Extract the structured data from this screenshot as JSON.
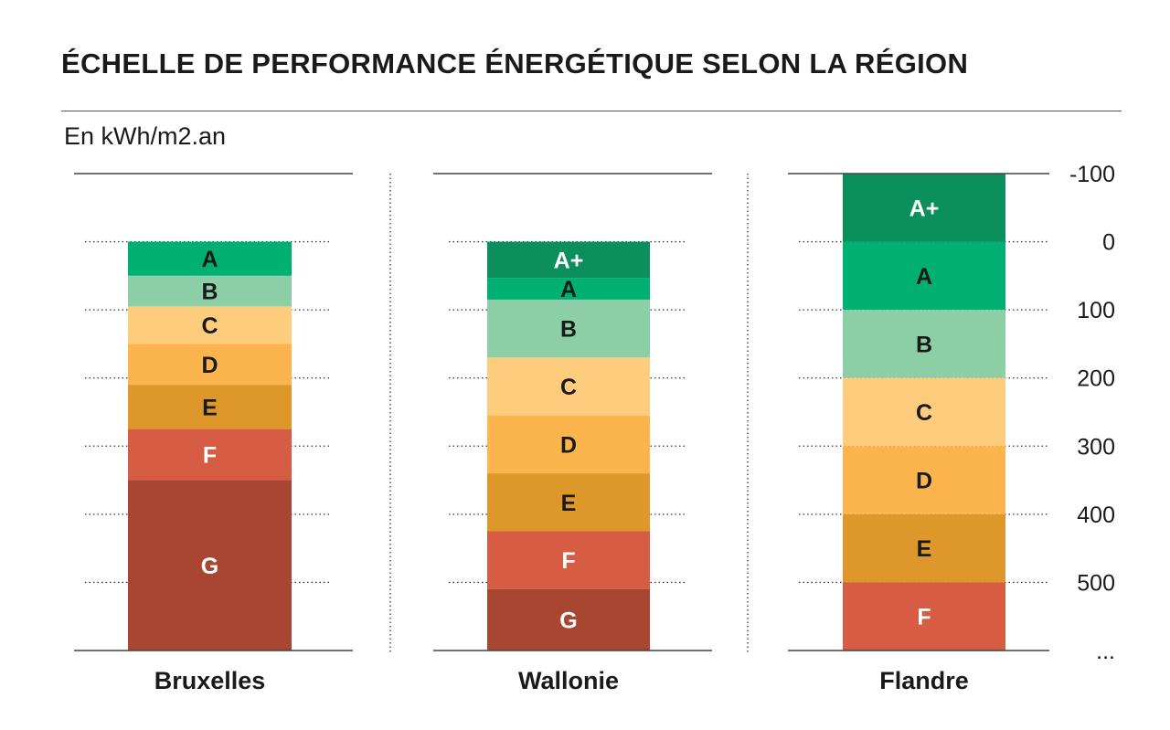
{
  "title": "ÉCHELLE DE PERFORMANCE ÉNERGÉTIQUE SELON LA RÉGION",
  "unit_label": "En kWh/m2.an",
  "colors": {
    "A+": "#0b8f5c",
    "A": "#00b072",
    "B": "#8ccfa6",
    "C": "#fdcc7d",
    "D": "#fbb54c",
    "E": "#dd972b",
    "F": "#d65c44",
    "G": "#a84632"
  },
  "chart_data": {
    "type": "bar",
    "stacked": true,
    "ylabel": "En kWh/m2.an",
    "ylim": [
      -100,
      600
    ],
    "y_ticks": [
      {
        "value": -100,
        "label": "-100"
      },
      {
        "value": 0,
        "label": "0"
      },
      {
        "value": 100,
        "label": "100"
      },
      {
        "value": 200,
        "label": "200"
      },
      {
        "value": 300,
        "label": "300"
      },
      {
        "value": 400,
        "label": "400"
      },
      {
        "value": 500,
        "label": "500"
      },
      {
        "value": 600,
        "label": "..."
      }
    ],
    "regions": [
      {
        "name": "Bruxelles",
        "segments": [
          {
            "label": "A",
            "from": 0,
            "to": 50
          },
          {
            "label": "B",
            "from": 50,
            "to": 95
          },
          {
            "label": "C",
            "from": 95,
            "to": 150
          },
          {
            "label": "D",
            "from": 150,
            "to": 210
          },
          {
            "label": "E",
            "from": 210,
            "to": 275
          },
          {
            "label": "F",
            "from": 275,
            "to": 350
          },
          {
            "label": "G",
            "from": 350,
            "to": 600
          }
        ]
      },
      {
        "name": "Wallonie",
        "segments": [
          {
            "label": "A+",
            "from": 0,
            "to": 53
          },
          {
            "label": "A",
            "from": 53,
            "to": 85
          },
          {
            "label": "B",
            "from": 85,
            "to": 170
          },
          {
            "label": "C",
            "from": 170,
            "to": 255
          },
          {
            "label": "D",
            "from": 255,
            "to": 340
          },
          {
            "label": "E",
            "from": 340,
            "to": 425
          },
          {
            "label": "F",
            "from": 425,
            "to": 510
          },
          {
            "label": "G",
            "from": 510,
            "to": 600
          }
        ]
      },
      {
        "name": "Flandre",
        "segments": [
          {
            "label": "A+",
            "from": -100,
            "to": 0
          },
          {
            "label": "A",
            "from": 0,
            "to": 100
          },
          {
            "label": "B",
            "from": 100,
            "to": 200
          },
          {
            "label": "C",
            "from": 200,
            "to": 300
          },
          {
            "label": "D",
            "from": 300,
            "to": 400
          },
          {
            "label": "E",
            "from": 400,
            "to": 500
          },
          {
            "label": "F",
            "from": 500,
            "to": 600
          }
        ]
      }
    ]
  }
}
